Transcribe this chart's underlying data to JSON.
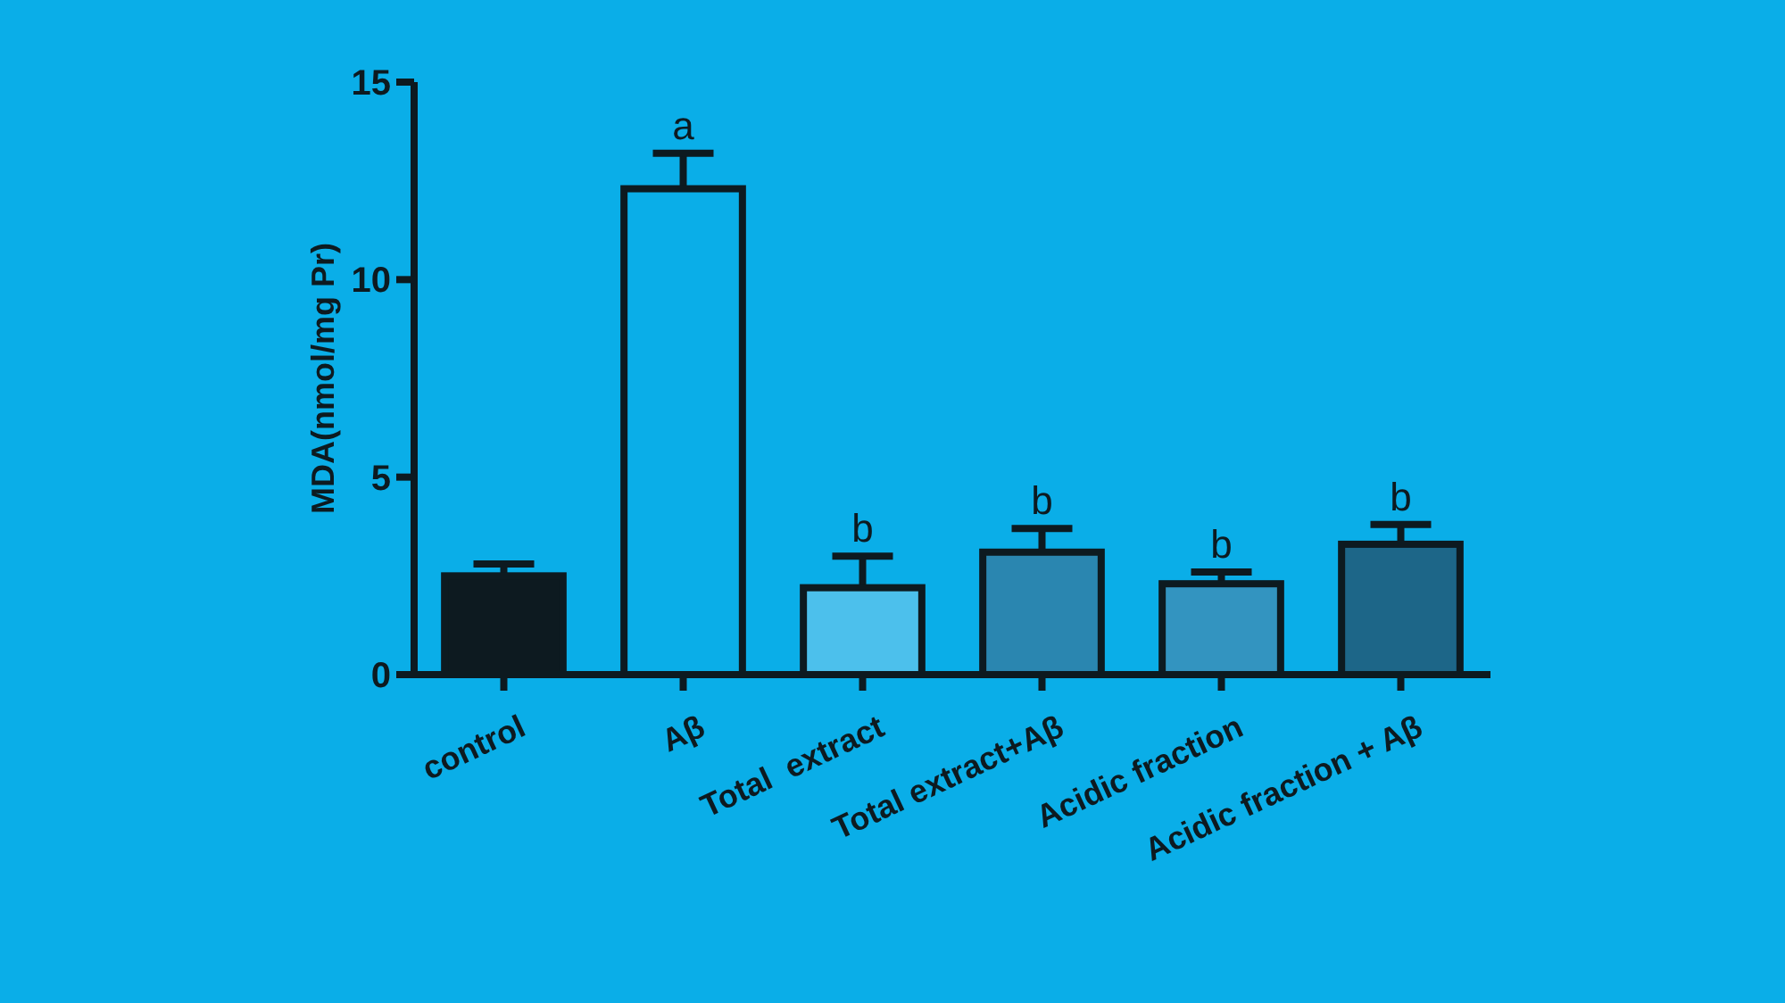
{
  "chart_data": {
    "type": "bar",
    "ylabel": "MDA(nmol/mg Pr)",
    "categories": [
      "control",
      "Aβ",
      "Total  extract",
      "Total extract+Aβ",
      "Acidic fraction",
      "Acidic fraction + Aβ"
    ],
    "values": [
      2.5,
      12.3,
      2.2,
      3.1,
      2.3,
      3.3
    ],
    "errors": [
      0.3,
      0.9,
      0.8,
      0.6,
      0.3,
      0.5
    ],
    "colors": [
      "#0d1a20",
      "#0aaee8",
      "#4cc0ec",
      "#2a86b0",
      "#3394c0",
      "#1d6688"
    ],
    "ylim": [
      0,
      15
    ],
    "yticks": [
      0,
      5,
      10,
      15
    ],
    "grid": false,
    "annotations": [
      {
        "text": "a",
        "x": "Aβ",
        "y": 13.2
      },
      {
        "text": "b",
        "x": "Total  extract",
        "y": 3.0
      },
      {
        "text": "b",
        "x": "Total extract+Aβ",
        "y": 3.7
      },
      {
        "text": "b",
        "x": "Acidic fraction",
        "y": 2.6
      },
      {
        "text": "b",
        "x": "Acidic fraction + Aβ",
        "y": 3.8
      }
    ]
  }
}
